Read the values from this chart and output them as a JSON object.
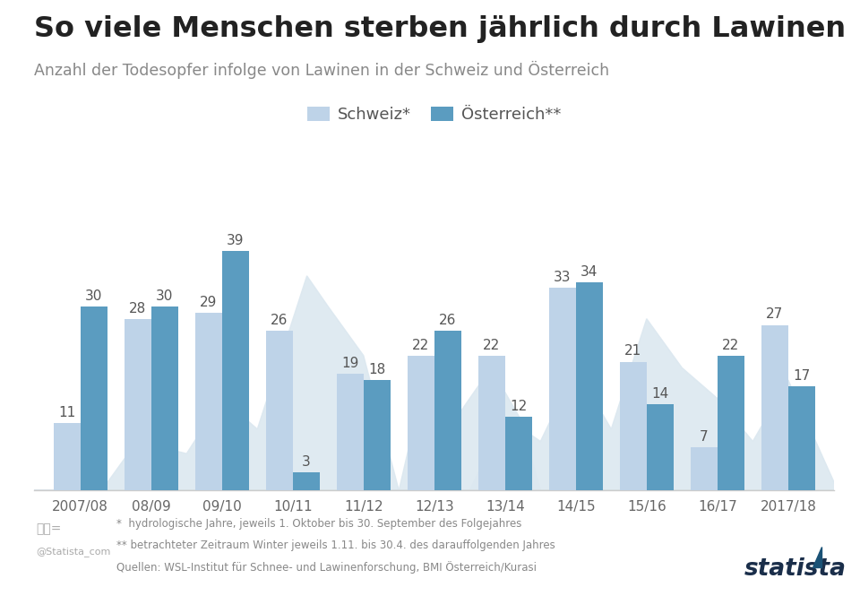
{
  "title": "So viele Menschen sterben jährlich durch Lawinen",
  "subtitle": "Anzahl der Todesopfer infolge von Lawinen in der Schweiz und Österreich",
  "categories": [
    "2007/08",
    "08/09",
    "09/10",
    "10/11",
    "11/12",
    "12/13",
    "13/14",
    "14/15",
    "15/16",
    "16/17",
    "2017/18"
  ],
  "schweiz": [
    11,
    28,
    29,
    26,
    19,
    22,
    22,
    33,
    21,
    7,
    27
  ],
  "oesterreich": [
    30,
    30,
    39,
    3,
    18,
    26,
    12,
    34,
    14,
    22,
    17
  ],
  "color_schweiz": "#bed3e8",
  "color_oesterreich": "#5b9cc0",
  "background_color": "#ffffff",
  "legend_schweiz": "Schweiz*",
  "legend_oesterreich": "Österreich**",
  "footnote1": "*  hydrologische Jahre, jeweils 1. Oktober bis 30. September des Folgejahres",
  "footnote2": "** betrachteter Zeitraum Winter jeweils 1.11. bis 30.4. des darauffolgenden Jahres",
  "footnote3": "Quellen: WSL-Institut für Schnee- und Lawinenforschung, BMI Österreich/Kurasi",
  "bar_width": 0.38,
  "ylim": [
    0,
    45
  ],
  "title_fontsize": 23,
  "subtitle_fontsize": 12.5,
  "label_fontsize": 11,
  "tick_fontsize": 11,
  "legend_fontsize": 13,
  "mountain_color": "#dce8f0",
  "value_label_color": "#555555"
}
